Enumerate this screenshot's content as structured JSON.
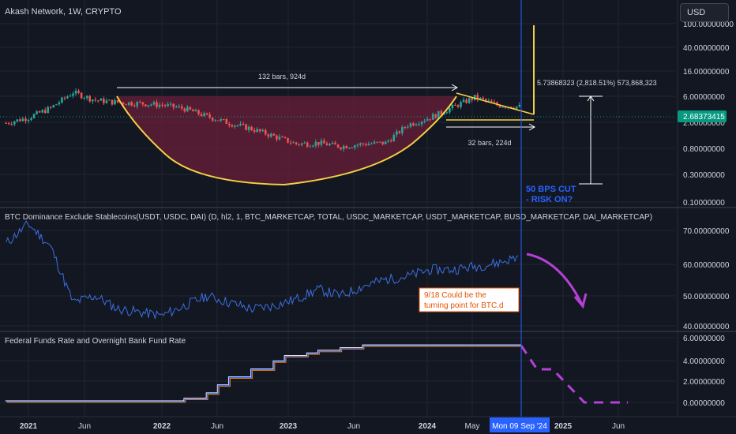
{
  "header": {
    "symbol_title": "Akash Network, 1W, CRYPTO",
    "currency_button": "USD"
  },
  "colors": {
    "background": "#131722",
    "grid": "#1f2430",
    "separator": "#2a2e39",
    "candle_up": "#26a69a",
    "candle_down": "#ef5350",
    "cup_fill": "#6b1f3a",
    "cup_curve": "#f5d142",
    "btc_line": "#3b6fe0",
    "fed_line_1": "#2962ff",
    "fed_line_2": "#f57c00",
    "fed_line_3": "#ffffff",
    "projection": "#b440d8",
    "date_line": "#2962ff",
    "price_badge": "#089981",
    "annotation_blue": "#2962ff",
    "annotation_orange": "#e65100"
  },
  "price_pane": {
    "axis_labels": [
      "100.00000000",
      "40.00000000",
      "16.00000000",
      "6.00000000",
      "2.00000000",
      "0.80000000",
      "0.30000000",
      "0.10000000"
    ],
    "current_price": "2.68373415",
    "range_top_label": "132 bars, 924d",
    "range_bottom_label": "32 bars, 224d",
    "measure_label": "5.73868323 (2,818.51%) 573,868,323",
    "annotation": [
      "50 BPS CUT",
      "- RISK ON?"
    ]
  },
  "btc_pane": {
    "title": "BTC Dominance Exclude Stablecoins(USDT, USDC, DAI) (D, hl2, 1, BTC_MARKETCAP, TOTAL, USDC_MARKETCAP, USDT_MARKETCAP, BUSD_MARKETCAP, DAI_MARKETCAP)",
    "axis_labels": [
      "70.00000000",
      "60.00000000",
      "50.00000000",
      "40.00000000"
    ],
    "note": [
      "9/18 Could be the",
      "turning point for BTC.d"
    ]
  },
  "fed_pane": {
    "title": "Federal Funds Rate and Overnight Bank Fund Rate",
    "axis_labels": [
      "6.00000000",
      "4.00000000",
      "2.00000000",
      "0.00000000"
    ]
  },
  "time_axis": {
    "labels": [
      "2021",
      "Jun",
      "2022",
      "Jun",
      "2023",
      "Jun",
      "2024",
      "May",
      "2025",
      "Jun"
    ],
    "cursor_label": "Mon 09 Sep '24"
  },
  "chart_data": [
    {
      "type": "candlestick",
      "title": "Akash Network, 1W, CRYPTO",
      "scale": "log",
      "ylim": [
        0.1,
        100
      ],
      "yticks": [
        100,
        40,
        16,
        6,
        2,
        0.8,
        0.3,
        0.1
      ],
      "x": [
        "2020-11",
        "2021-01",
        "2021-03",
        "2021-05",
        "2021-07",
        "2021-09",
        "2021-11",
        "2022-01",
        "2022-03",
        "2022-05",
        "2022-07",
        "2022-09",
        "2022-11",
        "2023-01",
        "2023-03",
        "2023-05",
        "2023-07",
        "2023-09",
        "2023-11",
        "2024-01",
        "2024-03",
        "2024-05",
        "2024-07",
        "2024-09"
      ],
      "close": [
        1.0,
        1.4,
        2.5,
        6.5,
        4.0,
        3.5,
        3.3,
        3.0,
        2.4,
        1.5,
        1.0,
        0.7,
        0.45,
        0.28,
        0.3,
        0.24,
        0.28,
        0.3,
        0.9,
        1.4,
        2.6,
        4.8,
        3.0,
        2.68
      ],
      "current_price": 2.68373415,
      "annotations": [
        "132 bars, 924d",
        "32 bars, 224d",
        "5.73868323 (2,818.51%) 573,868,323",
        "50 BPS CUT - RISK ON?"
      ]
    },
    {
      "type": "line",
      "title": "BTC Dominance Exclude Stablecoins(USDT, USDC, DAI) (D, hl2, 1, BTC_MARKETCAP, TOTAL, USDC_MARKETCAP, USDT_MARKETCAP, BUSD_MARKETCAP, DAI_MARKETCAP)",
      "ylim": [
        38,
        76
      ],
      "yticks": [
        70,
        60,
        50,
        40
      ],
      "x": [
        "2020-11",
        "2021-01",
        "2021-03",
        "2021-05",
        "2021-07",
        "2021-09",
        "2021-11",
        "2022-01",
        "2022-03",
        "2022-05",
        "2022-07",
        "2022-09",
        "2022-11",
        "2023-01",
        "2023-03",
        "2023-05",
        "2023-07",
        "2023-09",
        "2023-11",
        "2024-01",
        "2024-03",
        "2024-05",
        "2024-07",
        "2024-09"
      ],
      "values": [
        66,
        72,
        65,
        48,
        50,
        46,
        45,
        44,
        47,
        50,
        48,
        46,
        47,
        49,
        52,
        50,
        53,
        55,
        56,
        58,
        58,
        59,
        60,
        62
      ],
      "annotations": [
        "9/18 Could be the turning point for BTC.d"
      ]
    },
    {
      "type": "line",
      "title": "Federal Funds Rate and Overnight Bank Fund Rate",
      "ylim": [
        -0.3,
        6
      ],
      "yticks": [
        6,
        4,
        2,
        0
      ],
      "x": [
        "2020-11",
        "2021-06",
        "2022-01",
        "2022-03",
        "2022-05",
        "2022-06",
        "2022-07",
        "2022-09",
        "2022-11",
        "2022-12",
        "2023-02",
        "2023-03",
        "2023-05",
        "2023-07",
        "2024-09"
      ],
      "values": [
        0.08,
        0.08,
        0.08,
        0.33,
        0.83,
        1.58,
        2.33,
        3.08,
        3.83,
        4.33,
        4.58,
        4.83,
        5.08,
        5.33,
        5.33
      ]
    }
  ]
}
